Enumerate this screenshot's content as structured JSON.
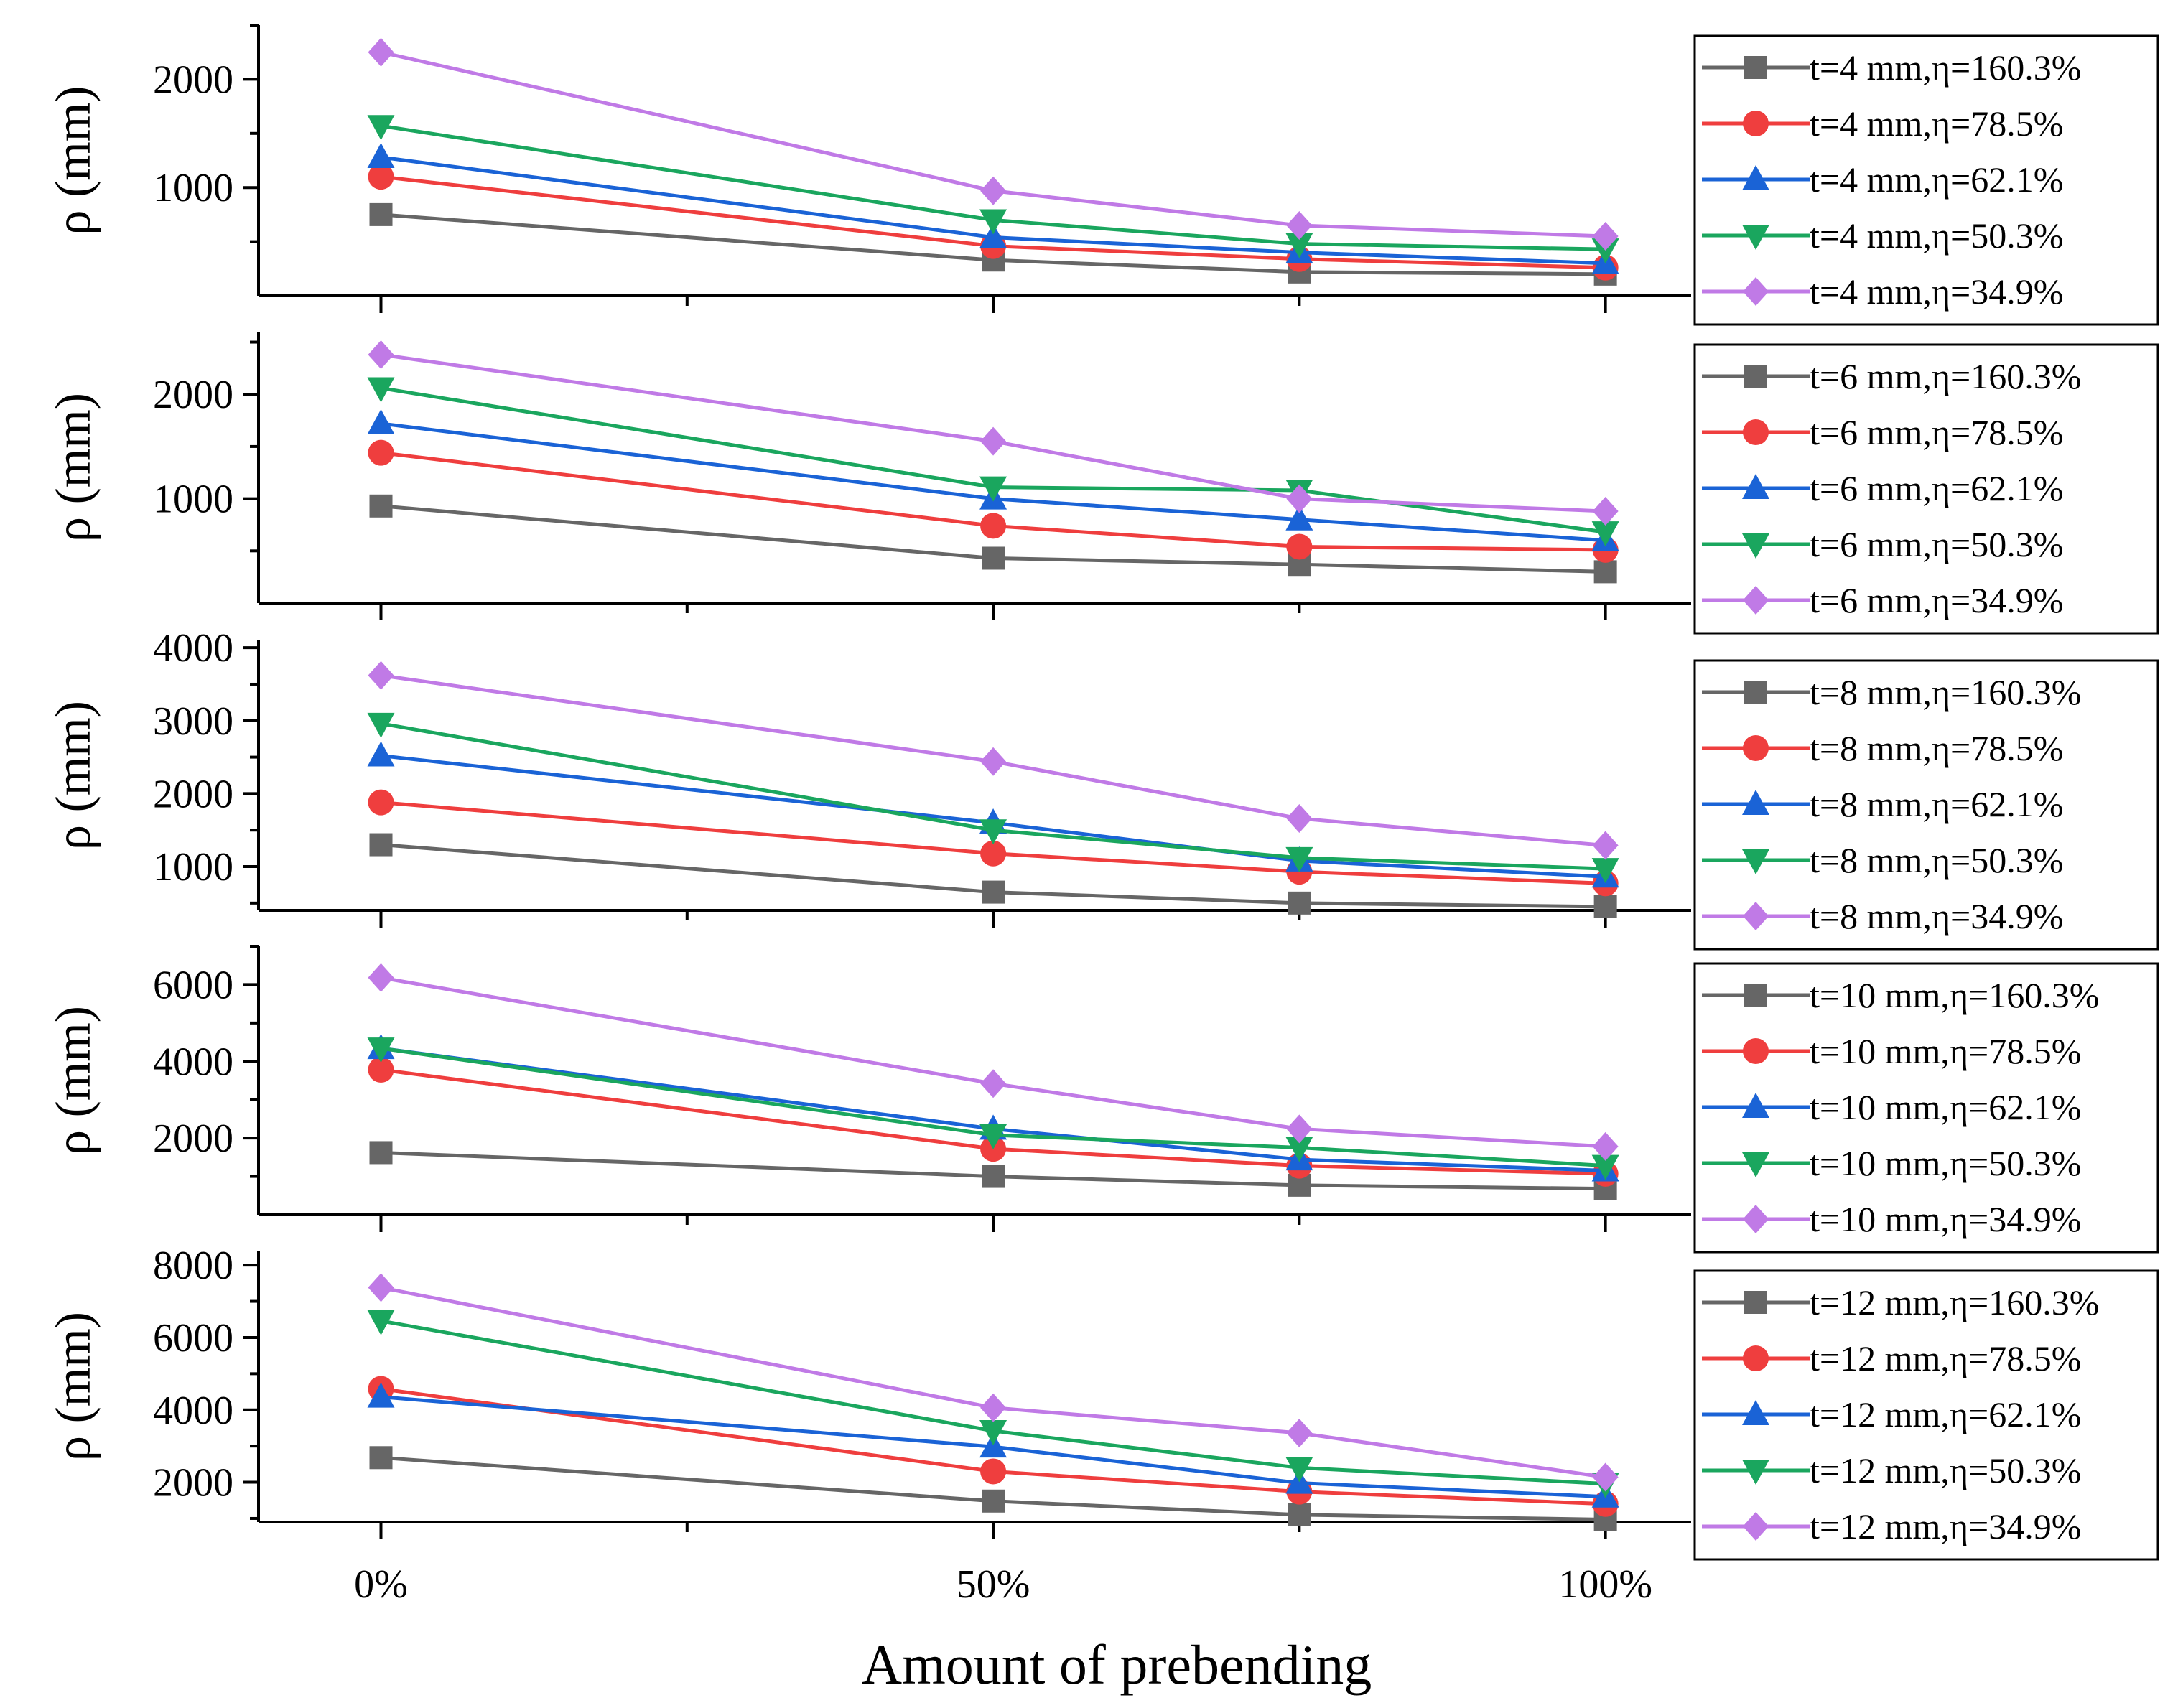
{
  "figure": {
    "xlabel": "Amount of prebending",
    "x_tick_labels": [
      "0%",
      "50%",
      "100%"
    ]
  },
  "chart_data": [
    {
      "type": "line",
      "ylabel": "ρ (mm)",
      "x": [
        0,
        50,
        75,
        100
      ],
      "xlim": [
        -10,
        107
      ],
      "ylim": [
        0,
        2500
      ],
      "yticks": [
        1000,
        2000
      ],
      "ytick_labels": [
        "1000",
        "2000"
      ],
      "legend_position": "right",
      "series": [
        {
          "name": "t=4 mm,η=160.3%",
          "color": "#666666",
          "marker": "square",
          "values": [
            750,
            330,
            220,
            200
          ]
        },
        {
          "name": "t=4 mm,η=78.5%",
          "color": "#ef3e3e",
          "marker": "circle",
          "values": [
            1100,
            460,
            340,
            260
          ]
        },
        {
          "name": "t=4 mm,η=62.1%",
          "color": "#1a63d6",
          "marker": "triangle-up",
          "values": [
            1280,
            540,
            400,
            300
          ]
        },
        {
          "name": "t=4 mm,η=50.3%",
          "color": "#1aa65e",
          "marker": "triangle-down",
          "values": [
            1570,
            700,
            480,
            430
          ]
        },
        {
          "name": "t=4 mm,η=34.9%",
          "color": "#c07ae6",
          "marker": "diamond",
          "values": [
            2250,
            970,
            650,
            550
          ]
        }
      ]
    },
    {
      "type": "line",
      "ylabel": "ρ (mm)",
      "x": [
        0,
        50,
        75,
        100
      ],
      "xlim": [
        -10,
        107
      ],
      "ylim": [
        0,
        2600
      ],
      "yticks": [
        1000,
        2000
      ],
      "ytick_labels": [
        "1000",
        "2000"
      ],
      "legend_position": "right",
      "series": [
        {
          "name": "t=6 mm,η=160.3%",
          "color": "#666666",
          "marker": "square",
          "values": [
            930,
            430,
            370,
            300
          ]
        },
        {
          "name": "t=6 mm,η=78.5%",
          "color": "#ef3e3e",
          "marker": "circle",
          "values": [
            1440,
            740,
            540,
            510
          ]
        },
        {
          "name": "t=6 mm,η=62.1%",
          "color": "#1a63d6",
          "marker": "triangle-up",
          "values": [
            1720,
            1000,
            800,
            600
          ]
        },
        {
          "name": "t=6 mm,η=50.3%",
          "color": "#1aa65e",
          "marker": "triangle-down",
          "values": [
            2060,
            1110,
            1080,
            680
          ]
        },
        {
          "name": "t=6 mm,η=34.9%",
          "color": "#c07ae6",
          "marker": "diamond",
          "values": [
            2380,
            1550,
            1000,
            880
          ]
        }
      ]
    },
    {
      "type": "line",
      "ylabel": "ρ (mm)",
      "x": [
        0,
        50,
        75,
        100
      ],
      "xlim": [
        -10,
        107
      ],
      "ylim": [
        400,
        4100
      ],
      "yticks": [
        1000,
        2000,
        3000,
        4000
      ],
      "ytick_labels": [
        "1000",
        "2000",
        "3000",
        "4000"
      ],
      "legend_position": "right",
      "series": [
        {
          "name": "t=8 mm,η=160.3%",
          "color": "#666666",
          "marker": "square",
          "values": [
            1300,
            650,
            500,
            450
          ]
        },
        {
          "name": "t=8 mm,η=78.5%",
          "color": "#ef3e3e",
          "marker": "circle",
          "values": [
            1880,
            1180,
            930,
            770
          ]
        },
        {
          "name": "t=8 mm,η=62.1%",
          "color": "#1a63d6",
          "marker": "triangle-up",
          "values": [
            2520,
            1600,
            1080,
            860
          ]
        },
        {
          "name": "t=8 mm,η=50.3%",
          "color": "#1aa65e",
          "marker": "triangle-down",
          "values": [
            2960,
            1500,
            1120,
            970
          ]
        },
        {
          "name": "t=8 mm,η=34.9%",
          "color": "#c07ae6",
          "marker": "diamond",
          "values": [
            3620,
            2440,
            1660,
            1290
          ]
        }
      ]
    },
    {
      "type": "line",
      "ylabel": "ρ (mm)",
      "x": [
        0,
        50,
        75,
        100
      ],
      "xlim": [
        -10,
        107
      ],
      "ylim": [
        0,
        7000
      ],
      "yticks": [
        2000,
        4000,
        6000
      ],
      "ytick_labels": [
        "2000",
        "4000",
        "6000"
      ],
      "legend_position": "right",
      "series": [
        {
          "name": "t=10 mm,η=160.3%",
          "color": "#666666",
          "marker": "square",
          "values": [
            1620,
            1000,
            770,
            680
          ]
        },
        {
          "name": "t=10 mm,η=78.5%",
          "color": "#ef3e3e",
          "marker": "circle",
          "values": [
            3780,
            1720,
            1280,
            1070
          ]
        },
        {
          "name": "t=10 mm,η=62.1%",
          "color": "#1a63d6",
          "marker": "triangle-up",
          "values": [
            4340,
            2240,
            1440,
            1150
          ]
        },
        {
          "name": "t=10 mm,η=50.3%",
          "color": "#1aa65e",
          "marker": "triangle-down",
          "values": [
            4340,
            2080,
            1750,
            1280
          ]
        },
        {
          "name": "t=10 mm,η=34.9%",
          "color": "#c07ae6",
          "marker": "diamond",
          "values": [
            6180,
            3420,
            2240,
            1780
          ]
        }
      ]
    },
    {
      "type": "line",
      "ylabel": "ρ (mm)",
      "x": [
        0,
        50,
        75,
        100
      ],
      "xlim": [
        -10,
        107
      ],
      "ylim": [
        900,
        8400
      ],
      "yticks": [
        2000,
        4000,
        6000,
        8000
      ],
      "ytick_labels": [
        "2000",
        "4000",
        "6000",
        "8000"
      ],
      "legend_position": "right",
      "series": [
        {
          "name": "t=12 mm,η=160.3%",
          "color": "#666666",
          "marker": "square",
          "values": [
            2680,
            1480,
            1100,
            970
          ]
        },
        {
          "name": "t=12 mm,η=78.5%",
          "color": "#ef3e3e",
          "marker": "circle",
          "values": [
            4580,
            2300,
            1740,
            1400
          ]
        },
        {
          "name": "t=12 mm,η=62.1%",
          "color": "#1a63d6",
          "marker": "triangle-up",
          "values": [
            4360,
            2980,
            1980,
            1600
          ]
        },
        {
          "name": "t=12 mm,η=50.3%",
          "color": "#1aa65e",
          "marker": "triangle-down",
          "values": [
            6460,
            3420,
            2400,
            1960
          ]
        },
        {
          "name": "t=12 mm,η=34.9%",
          "color": "#c07ae6",
          "marker": "diamond",
          "values": [
            7380,
            4060,
            3360,
            2140
          ]
        }
      ]
    }
  ]
}
